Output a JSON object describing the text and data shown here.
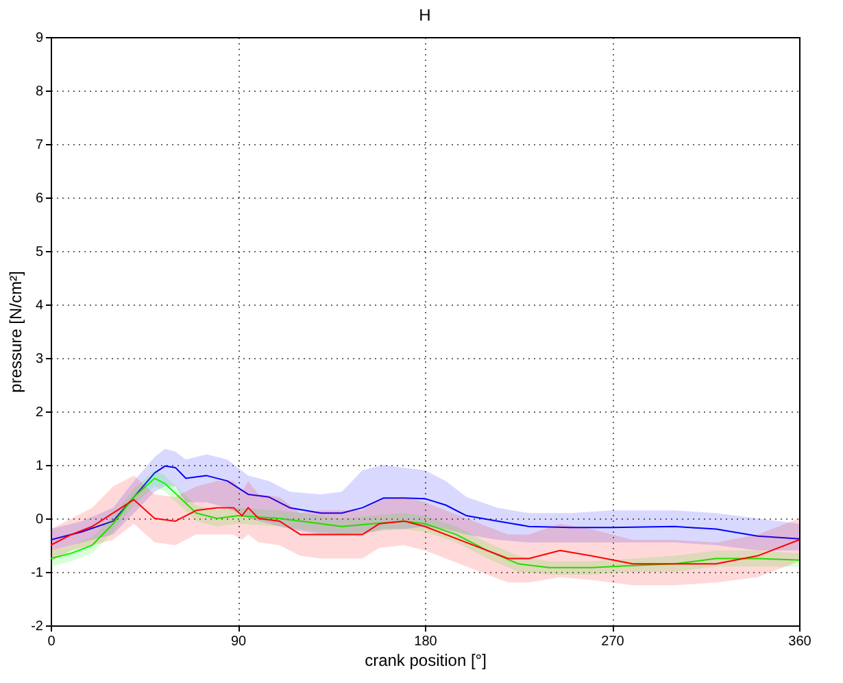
{
  "chart_data": {
    "type": "line",
    "title": "H",
    "xlabel": "crank position [°]",
    "ylabel": "pressure [N/cm²]",
    "xlim": [
      0,
      360
    ],
    "ylim": [
      -2,
      9
    ],
    "xticks": [
      0,
      90,
      180,
      270,
      360
    ],
    "yticks": [
      -2,
      -1,
      0,
      1,
      2,
      3,
      4,
      5,
      6,
      7,
      8,
      9
    ],
    "grid": true,
    "line_style": "solid",
    "series": [
      {
        "color": "#0000ff",
        "x": [
          0,
          15,
          30,
          40,
          50,
          55,
          60,
          65,
          75,
          85,
          95,
          105,
          115,
          130,
          140,
          150,
          160,
          170,
          180,
          190,
          200,
          215,
          230,
          250,
          270,
          300,
          320,
          340,
          360
        ],
        "values": [
          -0.4,
          -0.25,
          -0.05,
          0.4,
          0.85,
          0.98,
          0.95,
          0.75,
          0.8,
          0.7,
          0.45,
          0.4,
          0.2,
          0.1,
          0.1,
          0.2,
          0.38,
          0.38,
          0.37,
          0.25,
          0.05,
          -0.05,
          -0.15,
          -0.17,
          -0.17,
          -0.15,
          -0.2,
          -0.33,
          -0.38
        ],
        "lower": [
          -0.6,
          -0.45,
          -0.3,
          0.1,
          0.5,
          0.6,
          0.6,
          0.3,
          0.3,
          0.2,
          0.0,
          -0.1,
          -0.2,
          -0.3,
          -0.3,
          -0.3,
          -0.2,
          -0.2,
          -0.15,
          -0.2,
          -0.3,
          -0.4,
          -0.45,
          -0.45,
          -0.45,
          -0.45,
          -0.5,
          -0.6,
          -0.6
        ],
        "upper": [
          -0.2,
          -0.05,
          0.2,
          0.7,
          1.15,
          1.3,
          1.25,
          1.1,
          1.2,
          1.1,
          0.8,
          0.7,
          0.5,
          0.45,
          0.5,
          0.9,
          1.0,
          0.95,
          0.9,
          0.7,
          0.4,
          0.2,
          0.1,
          0.1,
          0.15,
          0.15,
          0.1,
          0.0,
          -0.1
        ]
      },
      {
        "color": "#00ff00",
        "x": [
          0,
          10,
          20,
          30,
          40,
          50,
          55,
          70,
          80,
          90,
          110,
          130,
          140,
          155,
          170,
          180,
          195,
          210,
          225,
          240,
          260,
          280,
          300,
          320,
          340,
          360
        ],
        "values": [
          -0.75,
          -0.65,
          -0.5,
          -0.1,
          0.4,
          0.75,
          0.65,
          0.1,
          0.0,
          0.05,
          0.0,
          -0.1,
          -0.15,
          -0.1,
          -0.05,
          -0.1,
          -0.3,
          -0.6,
          -0.85,
          -0.92,
          -0.92,
          -0.88,
          -0.85,
          -0.75,
          -0.75,
          -0.78
        ],
        "lower": [
          -0.9,
          -0.8,
          -0.65,
          -0.25,
          0.25,
          0.6,
          0.5,
          -0.05,
          -0.15,
          -0.1,
          -0.15,
          -0.25,
          -0.3,
          -0.25,
          -0.2,
          -0.25,
          -0.45,
          -0.75,
          -1.0,
          -1.05,
          -1.05,
          -1.0,
          -1.0,
          -0.9,
          -0.9,
          -0.9
        ],
        "upper": [
          -0.6,
          -0.5,
          -0.35,
          0.05,
          0.55,
          0.9,
          0.8,
          0.25,
          0.15,
          0.2,
          0.15,
          0.05,
          0.0,
          0.05,
          0.1,
          0.05,
          -0.15,
          -0.45,
          -0.7,
          -0.8,
          -0.8,
          -0.75,
          -0.7,
          -0.6,
          -0.6,
          -0.65
        ]
      },
      {
        "color": "#ff0000",
        "x": [
          0,
          10,
          20,
          30,
          40,
          50,
          60,
          70,
          80,
          88,
          92,
          95,
          100,
          110,
          120,
          130,
          140,
          150,
          158,
          170,
          180,
          200,
          220,
          230,
          245,
          260,
          280,
          300,
          320,
          340,
          360
        ],
        "values": [
          -0.5,
          -0.3,
          -0.15,
          0.1,
          0.35,
          0.0,
          -0.05,
          0.15,
          0.2,
          0.2,
          0.05,
          0.2,
          0.0,
          -0.05,
          -0.3,
          -0.3,
          -0.3,
          -0.3,
          -0.1,
          -0.05,
          -0.15,
          -0.45,
          -0.75,
          -0.75,
          -0.6,
          -0.7,
          -0.85,
          -0.85,
          -0.85,
          -0.7,
          -0.4
        ],
        "lower": [
          -0.8,
          -0.6,
          -0.5,
          -0.4,
          -0.1,
          -0.45,
          -0.5,
          -0.3,
          -0.3,
          -0.3,
          -0.4,
          -0.3,
          -0.45,
          -0.5,
          -0.7,
          -0.75,
          -0.75,
          -0.75,
          -0.55,
          -0.5,
          -0.6,
          -0.9,
          -1.2,
          -1.2,
          -1.1,
          -1.15,
          -1.25,
          -1.25,
          -1.2,
          -1.1,
          -0.8
        ],
        "upper": [
          -0.2,
          0.0,
          0.2,
          0.6,
          0.8,
          0.45,
          0.4,
          0.6,
          0.7,
          0.7,
          0.5,
          0.7,
          0.45,
          0.4,
          0.1,
          0.15,
          0.15,
          0.15,
          0.35,
          0.4,
          0.3,
          0.0,
          -0.3,
          -0.3,
          -0.1,
          -0.2,
          -0.4,
          -0.4,
          -0.45,
          -0.3,
          0.0
        ]
      }
    ]
  }
}
